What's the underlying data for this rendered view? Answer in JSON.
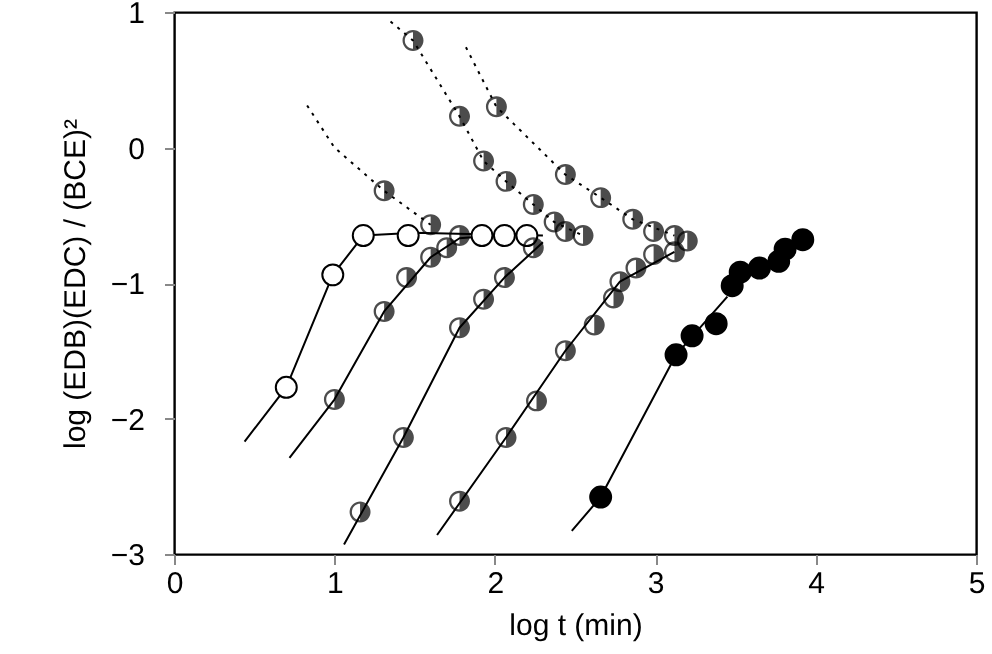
{
  "chart_data": {
    "type": "scatter",
    "xlabel": "log t (min)",
    "ylabel": "log (EDB)(EDC) / (BCE)²",
    "xlim": [
      0,
      5
    ],
    "xticks": [
      0,
      1,
      2,
      3,
      4,
      5
    ],
    "ylim": [
      -3,
      1
    ],
    "yticks": [
      -3,
      -2,
      -1,
      0,
      1
    ],
    "grid": false,
    "series": [
      {
        "type": "line",
        "line_style": "solid",
        "color": "#000000",
        "x": [
          0.44,
          0.7,
          0.99,
          1.18,
          1.5,
          2.3
        ],
        "values": [
          -2.17,
          -1.77,
          -0.94,
          -0.65,
          -0.63,
          -0.65
        ]
      },
      {
        "type": "line",
        "line_style": "solid",
        "color": "#000000",
        "x": [
          0.72,
          1.0,
          1.31,
          1.6,
          1.78,
          2.2
        ],
        "values": [
          -2.29,
          -1.86,
          -1.21,
          -0.81,
          -0.67,
          -0.63
        ]
      },
      {
        "type": "line",
        "line_style": "solid",
        "color": "#000000",
        "x": [
          1.06,
          1.43,
          1.78,
          2.06,
          2.3
        ],
        "values": [
          -2.93,
          -2.14,
          -1.33,
          -0.96,
          -0.7
        ]
      },
      {
        "type": "line",
        "line_style": "solid",
        "color": "#000000",
        "x": [
          1.64,
          2.07,
          2.44,
          2.78,
          3.12
        ],
        "values": [
          -2.86,
          -2.14,
          -1.5,
          -0.99,
          -0.77
        ]
      },
      {
        "type": "line",
        "line_style": "solid",
        "color": "#000000",
        "x": [
          2.48,
          2.66,
          3.13,
          3.45
        ],
        "values": [
          -2.83,
          -2.58,
          -1.53,
          -1.1
        ]
      },
      {
        "type": "line",
        "line_style": "dotted",
        "color": "#000000",
        "x": [
          0.83,
          1.0,
          1.31,
          1.6
        ],
        "values": [
          0.31,
          0.0,
          -0.32,
          -0.57
        ]
      },
      {
        "type": "line",
        "line_style": "dotted",
        "color": "#000000",
        "x": [
          1.35,
          1.49,
          1.78,
          1.93,
          2.07,
          2.24,
          2.37,
          2.55
        ],
        "values": [
          0.93,
          0.79,
          0.23,
          -0.1,
          -0.25,
          -0.42,
          -0.55,
          -0.65
        ]
      },
      {
        "type": "line",
        "line_style": "dotted",
        "color": "#000000",
        "x": [
          1.82,
          2.01,
          2.44,
          2.66,
          2.86,
          3.12
        ],
        "values": [
          0.74,
          0.3,
          -0.2,
          -0.37,
          -0.53,
          -0.65
        ]
      },
      {
        "marker": "circle",
        "color": "#ffffff",
        "x": [
          0.7,
          0.99,
          1.18,
          1.46,
          1.92,
          2.06,
          2.2
        ],
        "values": [
          -1.77,
          -0.94,
          -0.65,
          -0.65,
          -0.65,
          -0.65,
          -0.65
        ]
      },
      {
        "color": "#000000",
        "x": [
          1.0,
          1.31,
          1.45,
          1.6,
          1.7,
          1.78,
          1.6
        ],
        "values": [
          -1.86,
          -1.21,
          -0.96,
          -0.81,
          -0.74,
          -0.65,
          -0.57
        ]
      },
      {
        "color": "#000000",
        "x": [
          1.31
        ],
        "values": [
          -0.32
        ]
      },
      {
        "color": "#000000",
        "x": [
          1.49,
          1.78,
          1.93,
          2.07,
          2.24,
          2.37,
          2.44,
          2.55
        ],
        "values": [
          0.79,
          0.23,
          -0.1,
          -0.25,
          -0.42,
          -0.55,
          -0.62,
          -0.65
        ]
      },
      {
        "color": "#000000",
        "x": [
          2.01,
          2.44,
          2.66,
          2.86,
          2.99,
          3.12,
          3.2
        ],
        "values": [
          0.3,
          -0.2,
          -0.37,
          -0.53,
          -0.62,
          -0.65,
          -0.69
        ]
      },
      {
        "color": "#000000",
        "x": [
          1.16,
          1.43,
          1.78,
          1.93,
          2.06,
          2.24
        ],
        "values": [
          -2.69,
          -2.14,
          -1.33,
          -1.12,
          -0.96,
          -0.74
        ]
      },
      {
        "color": "#000000",
        "x": [
          1.78,
          2.07,
          2.26,
          2.44,
          2.62,
          2.74,
          2.78,
          2.88,
          2.99,
          3.12
        ],
        "values": [
          -2.61,
          -2.14,
          -1.87,
          -1.5,
          -1.31,
          -1.11,
          -0.99,
          -0.89,
          -0.79,
          -0.77
        ]
      },
      {
        "marker": "circle",
        "color": "#000000",
        "x": [
          2.66,
          3.13,
          3.23,
          3.38,
          3.48,
          3.53,
          3.65,
          3.77,
          3.81,
          3.92
        ],
        "values": [
          -2.58,
          -1.53,
          -1.39,
          -1.3,
          -1.02,
          -0.92,
          -0.89,
          -0.84,
          -0.75,
          -0.68
        ]
      }
    ]
  }
}
